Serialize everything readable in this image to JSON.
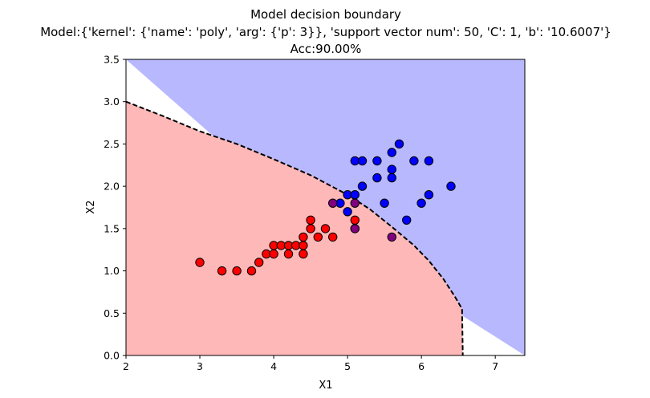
{
  "chart_data": {
    "type": "scatter",
    "title_lines": [
      "Model decision boundary",
      "Model:{'kernel': {'name': 'poly', 'arg': {'p': 3}}, 'support vector num': 50, 'C': 1, 'b': '10.6007'}",
      "Acc:90.00%"
    ],
    "xlabel": "X1",
    "ylabel": "X2",
    "xlim": [
      2,
      7.4
    ],
    "ylim": [
      0,
      3.5
    ],
    "x_ticks": [
      2,
      3,
      4,
      5,
      6,
      7
    ],
    "y_ticks": [
      0.0,
      0.5,
      1.0,
      1.5,
      2.0,
      2.5,
      3.0,
      3.5
    ],
    "x_tick_labels": [
      "2",
      "3",
      "4",
      "5",
      "6",
      "7"
    ],
    "y_tick_labels": [
      "0.0",
      "0.5",
      "1.0",
      "1.5",
      "2.0",
      "2.5",
      "3.0",
      "3.5"
    ],
    "grid": false,
    "colors": {
      "region_pos": "#b8b8ff",
      "region_neg": "#ffb8b8",
      "class_pos": "#0000ff",
      "class_neg": "#ff0000",
      "misclassified": "#800080",
      "boundary": "#000000"
    },
    "boundary": [
      [
        2.0,
        3.0
      ],
      [
        2.5,
        2.83
      ],
      [
        3.0,
        2.65
      ],
      [
        3.5,
        2.5
      ],
      [
        4.0,
        2.32
      ],
      [
        4.5,
        2.13
      ],
      [
        5.0,
        1.9
      ],
      [
        5.3,
        1.73
      ],
      [
        5.6,
        1.52
      ],
      [
        5.9,
        1.3
      ],
      [
        6.1,
        1.12
      ],
      [
        6.3,
        0.9
      ],
      [
        6.45,
        0.7
      ],
      [
        6.55,
        0.55
      ],
      [
        6.56,
        0.0
      ]
    ],
    "series": [
      {
        "class": "positive",
        "points": [
          [
            5.1,
            2.3
          ],
          [
            5.2,
            2.3
          ],
          [
            5.4,
            2.3
          ],
          [
            5.7,
            2.5
          ],
          [
            5.6,
            2.4
          ],
          [
            5.9,
            2.3
          ],
          [
            6.1,
            2.3
          ],
          [
            5.6,
            2.2
          ],
          [
            5.4,
            2.1
          ],
          [
            5.6,
            2.1
          ],
          [
            5.2,
            2.0
          ],
          [
            6.4,
            2.0
          ],
          [
            6.1,
            1.9
          ],
          [
            5.0,
            1.9
          ],
          [
            5.1,
            1.9
          ],
          [
            4.9,
            1.8
          ],
          [
            5.5,
            1.8
          ],
          [
            6.0,
            1.8
          ],
          [
            5.8,
            1.6
          ],
          [
            5.0,
            1.7
          ]
        ]
      },
      {
        "class": "negative",
        "points": [
          [
            3.0,
            1.1
          ],
          [
            3.3,
            1.0
          ],
          [
            3.5,
            1.0
          ],
          [
            3.7,
            1.0
          ],
          [
            3.8,
            1.1
          ],
          [
            3.9,
            1.2
          ],
          [
            4.0,
            1.2
          ],
          [
            4.0,
            1.3
          ],
          [
            4.1,
            1.3
          ],
          [
            4.2,
            1.3
          ],
          [
            4.2,
            1.2
          ],
          [
            4.3,
            1.3
          ],
          [
            4.4,
            1.3
          ],
          [
            4.4,
            1.2
          ],
          [
            4.4,
            1.4
          ],
          [
            4.5,
            1.5
          ],
          [
            4.5,
            1.6
          ],
          [
            4.6,
            1.4
          ],
          [
            4.7,
            1.5
          ],
          [
            4.8,
            1.4
          ],
          [
            5.1,
            1.6
          ],
          [
            5.1,
            1.5
          ]
        ]
      },
      {
        "class": "misclassified",
        "points": [
          [
            4.8,
            1.8
          ],
          [
            5.1,
            1.8
          ],
          [
            5.1,
            1.5
          ],
          [
            5.6,
            1.4
          ]
        ]
      }
    ]
  }
}
